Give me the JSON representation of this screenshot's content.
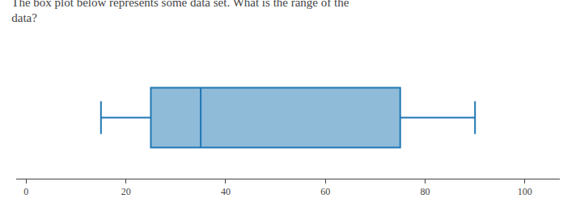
{
  "chart_data": {
    "type": "box",
    "title": "The box plot below represents some data set. What is the range of the\ndata?",
    "min": 15,
    "q1": 25,
    "median": 35,
    "q3": 75,
    "max": 90,
    "xlim": [
      -2,
      107
    ],
    "xticks": [
      0,
      20,
      40,
      60,
      80,
      100
    ],
    "tick_labels": "x",
    "grid": false
  }
}
